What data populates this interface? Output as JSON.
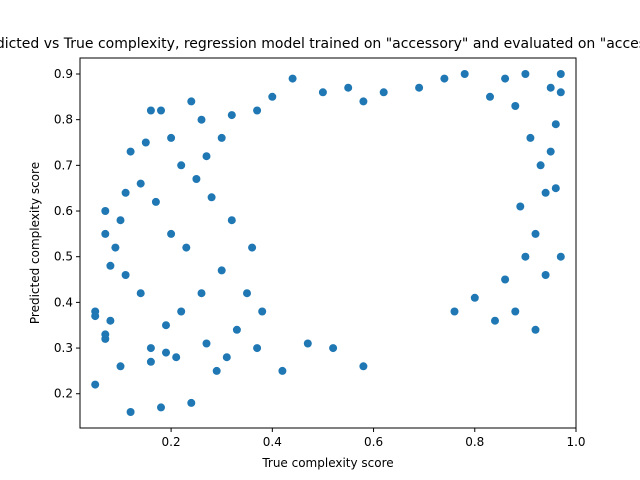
{
  "chart_data": {
    "type": "scatter",
    "title": "Predicted vs True complexity, regression model trained on \"accessory\" and evaluated on \"accessory\"",
    "xlabel": "True complexity score",
    "ylabel": "Predicted complexity score",
    "xlim": [
      0.02,
      1.0
    ],
    "ylim": [
      0.125,
      0.935
    ],
    "xticks": [
      0.2,
      0.4,
      0.6,
      0.8,
      1.0
    ],
    "yticks": [
      0.2,
      0.3,
      0.4,
      0.5,
      0.6,
      0.7,
      0.8,
      0.9
    ],
    "xtick_labels": [
      "0.2",
      "0.4",
      "0.6",
      "0.8",
      "1.0"
    ],
    "ytick_labels": [
      "0.2",
      "0.3",
      "0.4",
      "0.5",
      "0.6",
      "0.7",
      "0.8",
      "0.9"
    ],
    "grid": false,
    "marker_color": "#1f77b4",
    "series": [
      {
        "values": [
          [
            0.05,
            0.22
          ],
          [
            0.12,
            0.16
          ],
          [
            0.18,
            0.17
          ],
          [
            0.24,
            0.18
          ],
          [
            0.05,
            0.37
          ],
          [
            0.05,
            0.38
          ],
          [
            0.08,
            0.36
          ],
          [
            0.1,
            0.26
          ],
          [
            0.07,
            0.32
          ],
          [
            0.07,
            0.33
          ],
          [
            0.16,
            0.27
          ],
          [
            0.16,
            0.82
          ],
          [
            0.24,
            0.84
          ],
          [
            0.12,
            0.73
          ],
          [
            0.15,
            0.75
          ],
          [
            0.18,
            0.82
          ],
          [
            0.2,
            0.76
          ],
          [
            0.26,
            0.8
          ],
          [
            0.11,
            0.64
          ],
          [
            0.1,
            0.58
          ],
          [
            0.07,
            0.55
          ],
          [
            0.07,
            0.6
          ],
          [
            0.08,
            0.48
          ],
          [
            0.09,
            0.52
          ],
          [
            0.11,
            0.46
          ],
          [
            0.14,
            0.66
          ],
          [
            0.17,
            0.62
          ],
          [
            0.14,
            0.42
          ],
          [
            0.16,
            0.3
          ],
          [
            0.19,
            0.29
          ],
          [
            0.21,
            0.28
          ],
          [
            0.27,
            0.31
          ],
          [
            0.29,
            0.25
          ],
          [
            0.31,
            0.28
          ],
          [
            0.42,
            0.25
          ],
          [
            0.47,
            0.31
          ],
          [
            0.52,
            0.3
          ],
          [
            0.58,
            0.26
          ],
          [
            0.94,
            0.46
          ],
          [
            0.97,
            0.5
          ],
          [
            0.92,
            0.34
          ],
          [
            0.94,
            0.64
          ],
          [
            0.96,
            0.65
          ],
          [
            0.95,
            0.73
          ],
          [
            0.96,
            0.79
          ],
          [
            0.95,
            0.87
          ],
          [
            0.97,
            0.86
          ],
          [
            0.97,
            0.9
          ],
          [
            0.9,
            0.9
          ],
          [
            0.86,
            0.89
          ],
          [
            0.78,
            0.9
          ],
          [
            0.74,
            0.89
          ],
          [
            0.44,
            0.89
          ],
          [
            0.5,
            0.86
          ],
          [
            0.55,
            0.87
          ],
          [
            0.4,
            0.85
          ],
          [
            0.37,
            0.82
          ],
          [
            0.32,
            0.81
          ],
          [
            0.3,
            0.76
          ],
          [
            0.27,
            0.72
          ],
          [
            0.22,
            0.7
          ],
          [
            0.25,
            0.67
          ],
          [
            0.28,
            0.63
          ],
          [
            0.32,
            0.58
          ],
          [
            0.36,
            0.52
          ],
          [
            0.3,
            0.47
          ],
          [
            0.26,
            0.42
          ],
          [
            0.22,
            0.38
          ],
          [
            0.19,
            0.35
          ],
          [
            0.23,
            0.52
          ],
          [
            0.2,
            0.55
          ],
          [
            0.35,
            0.42
          ],
          [
            0.38,
            0.38
          ],
          [
            0.33,
            0.34
          ],
          [
            0.37,
            0.3
          ],
          [
            0.88,
            0.38
          ],
          [
            0.84,
            0.36
          ],
          [
            0.8,
            0.41
          ],
          [
            0.76,
            0.38
          ],
          [
            0.86,
            0.45
          ],
          [
            0.9,
            0.5
          ],
          [
            0.92,
            0.55
          ],
          [
            0.89,
            0.61
          ],
          [
            0.93,
            0.7
          ],
          [
            0.91,
            0.76
          ],
          [
            0.88,
            0.83
          ],
          [
            0.83,
            0.85
          ],
          [
            0.69,
            0.87
          ],
          [
            0.62,
            0.86
          ],
          [
            0.58,
            0.84
          ]
        ]
      }
    ]
  }
}
